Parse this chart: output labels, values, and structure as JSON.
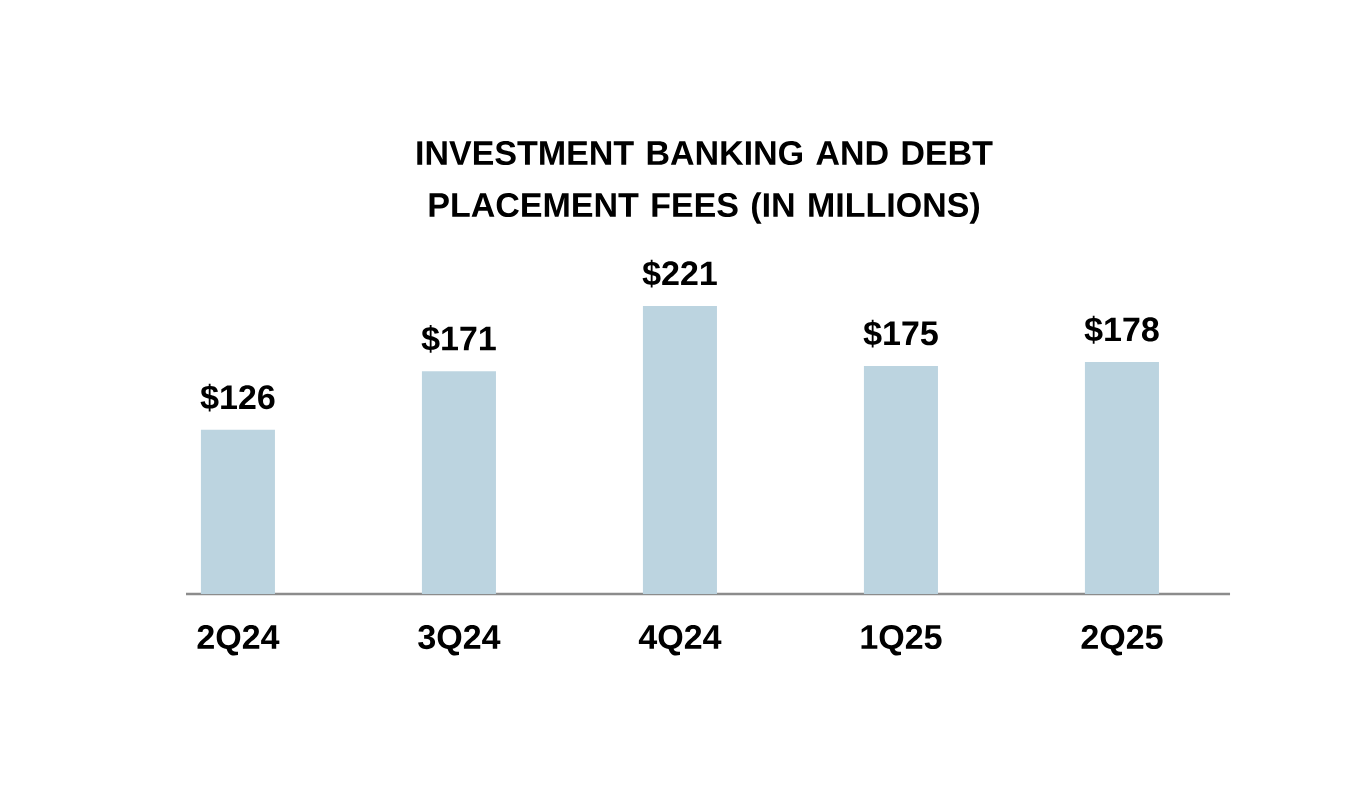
{
  "chart_data": {
    "type": "bar",
    "title": "INVESTMENT BANKING AND DEBT PLACEMENT FEES (IN MILLIONS)",
    "categories": [
      "2Q24",
      "3Q24",
      "4Q24",
      "1Q25",
      "2Q25"
    ],
    "values": [
      126,
      171,
      221,
      175,
      178
    ],
    "value_labels": [
      "$126",
      "$171",
      "$221",
      "$175",
      "$178"
    ],
    "color": "#bcd4e0"
  }
}
